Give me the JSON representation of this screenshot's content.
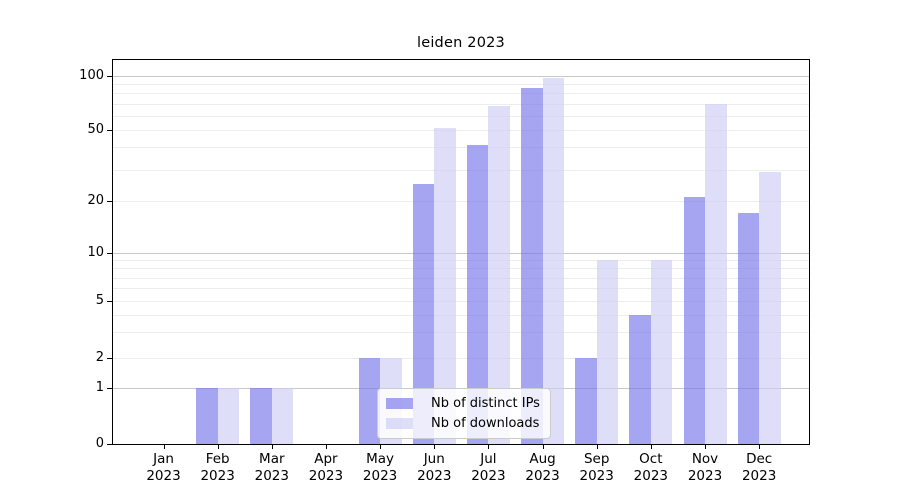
{
  "title": "leiden 2023",
  "chart_data": {
    "type": "bar",
    "title": "leiden 2023",
    "categories": [
      "Jan 2023",
      "Feb 2023",
      "Mar 2023",
      "Apr 2023",
      "May 2023",
      "Jun 2023",
      "Jul 2023",
      "Aug 2023",
      "Sep 2023",
      "Oct 2023",
      "Nov 2023",
      "Dec 2023"
    ],
    "series": [
      {
        "name": "Nb of distinct IPs",
        "color": "rgba(116,116,234,0.65)",
        "values": [
          0,
          1,
          1,
          0,
          2,
          25,
          41,
          86,
          2,
          4,
          21,
          17
        ]
      },
      {
        "name": "Nb of downloads",
        "color": "rgba(204,204,244,0.65)",
        "values": [
          0,
          1,
          1,
          0,
          2,
          51,
          68,
          97,
          9,
          9,
          70,
          29
        ]
      }
    ],
    "xlabel": "",
    "ylabel": "",
    "yscale": "symlog (linear below 1, log above)",
    "ylim": [
      0,
      120
    ],
    "y_ticks": [
      0,
      1,
      2,
      5,
      10,
      20,
      50,
      100
    ],
    "y_tick_labels": [
      "0",
      "1",
      "2",
      "5",
      "10",
      "20",
      "50",
      "100"
    ],
    "y_minor_gridlines": [
      2,
      3,
      4,
      5,
      6,
      7,
      8,
      9,
      20,
      30,
      40,
      50,
      60,
      70,
      80,
      90
    ],
    "y_major_gridlines": [
      1,
      10,
      100
    ],
    "grid": true,
    "legend_position": "lower center"
  },
  "colors": {
    "bar_distinct_ips": "rgba(116,116,234,0.65)",
    "bar_downloads": "rgba(204,204,244,0.65)",
    "grid_major": "#c8c8c8",
    "grid_minor": "#ededed",
    "spine": "#000000",
    "legend_border": "#cccccc",
    "legend_background": "rgba(255,255,255,0.8)",
    "text": "#000000"
  }
}
